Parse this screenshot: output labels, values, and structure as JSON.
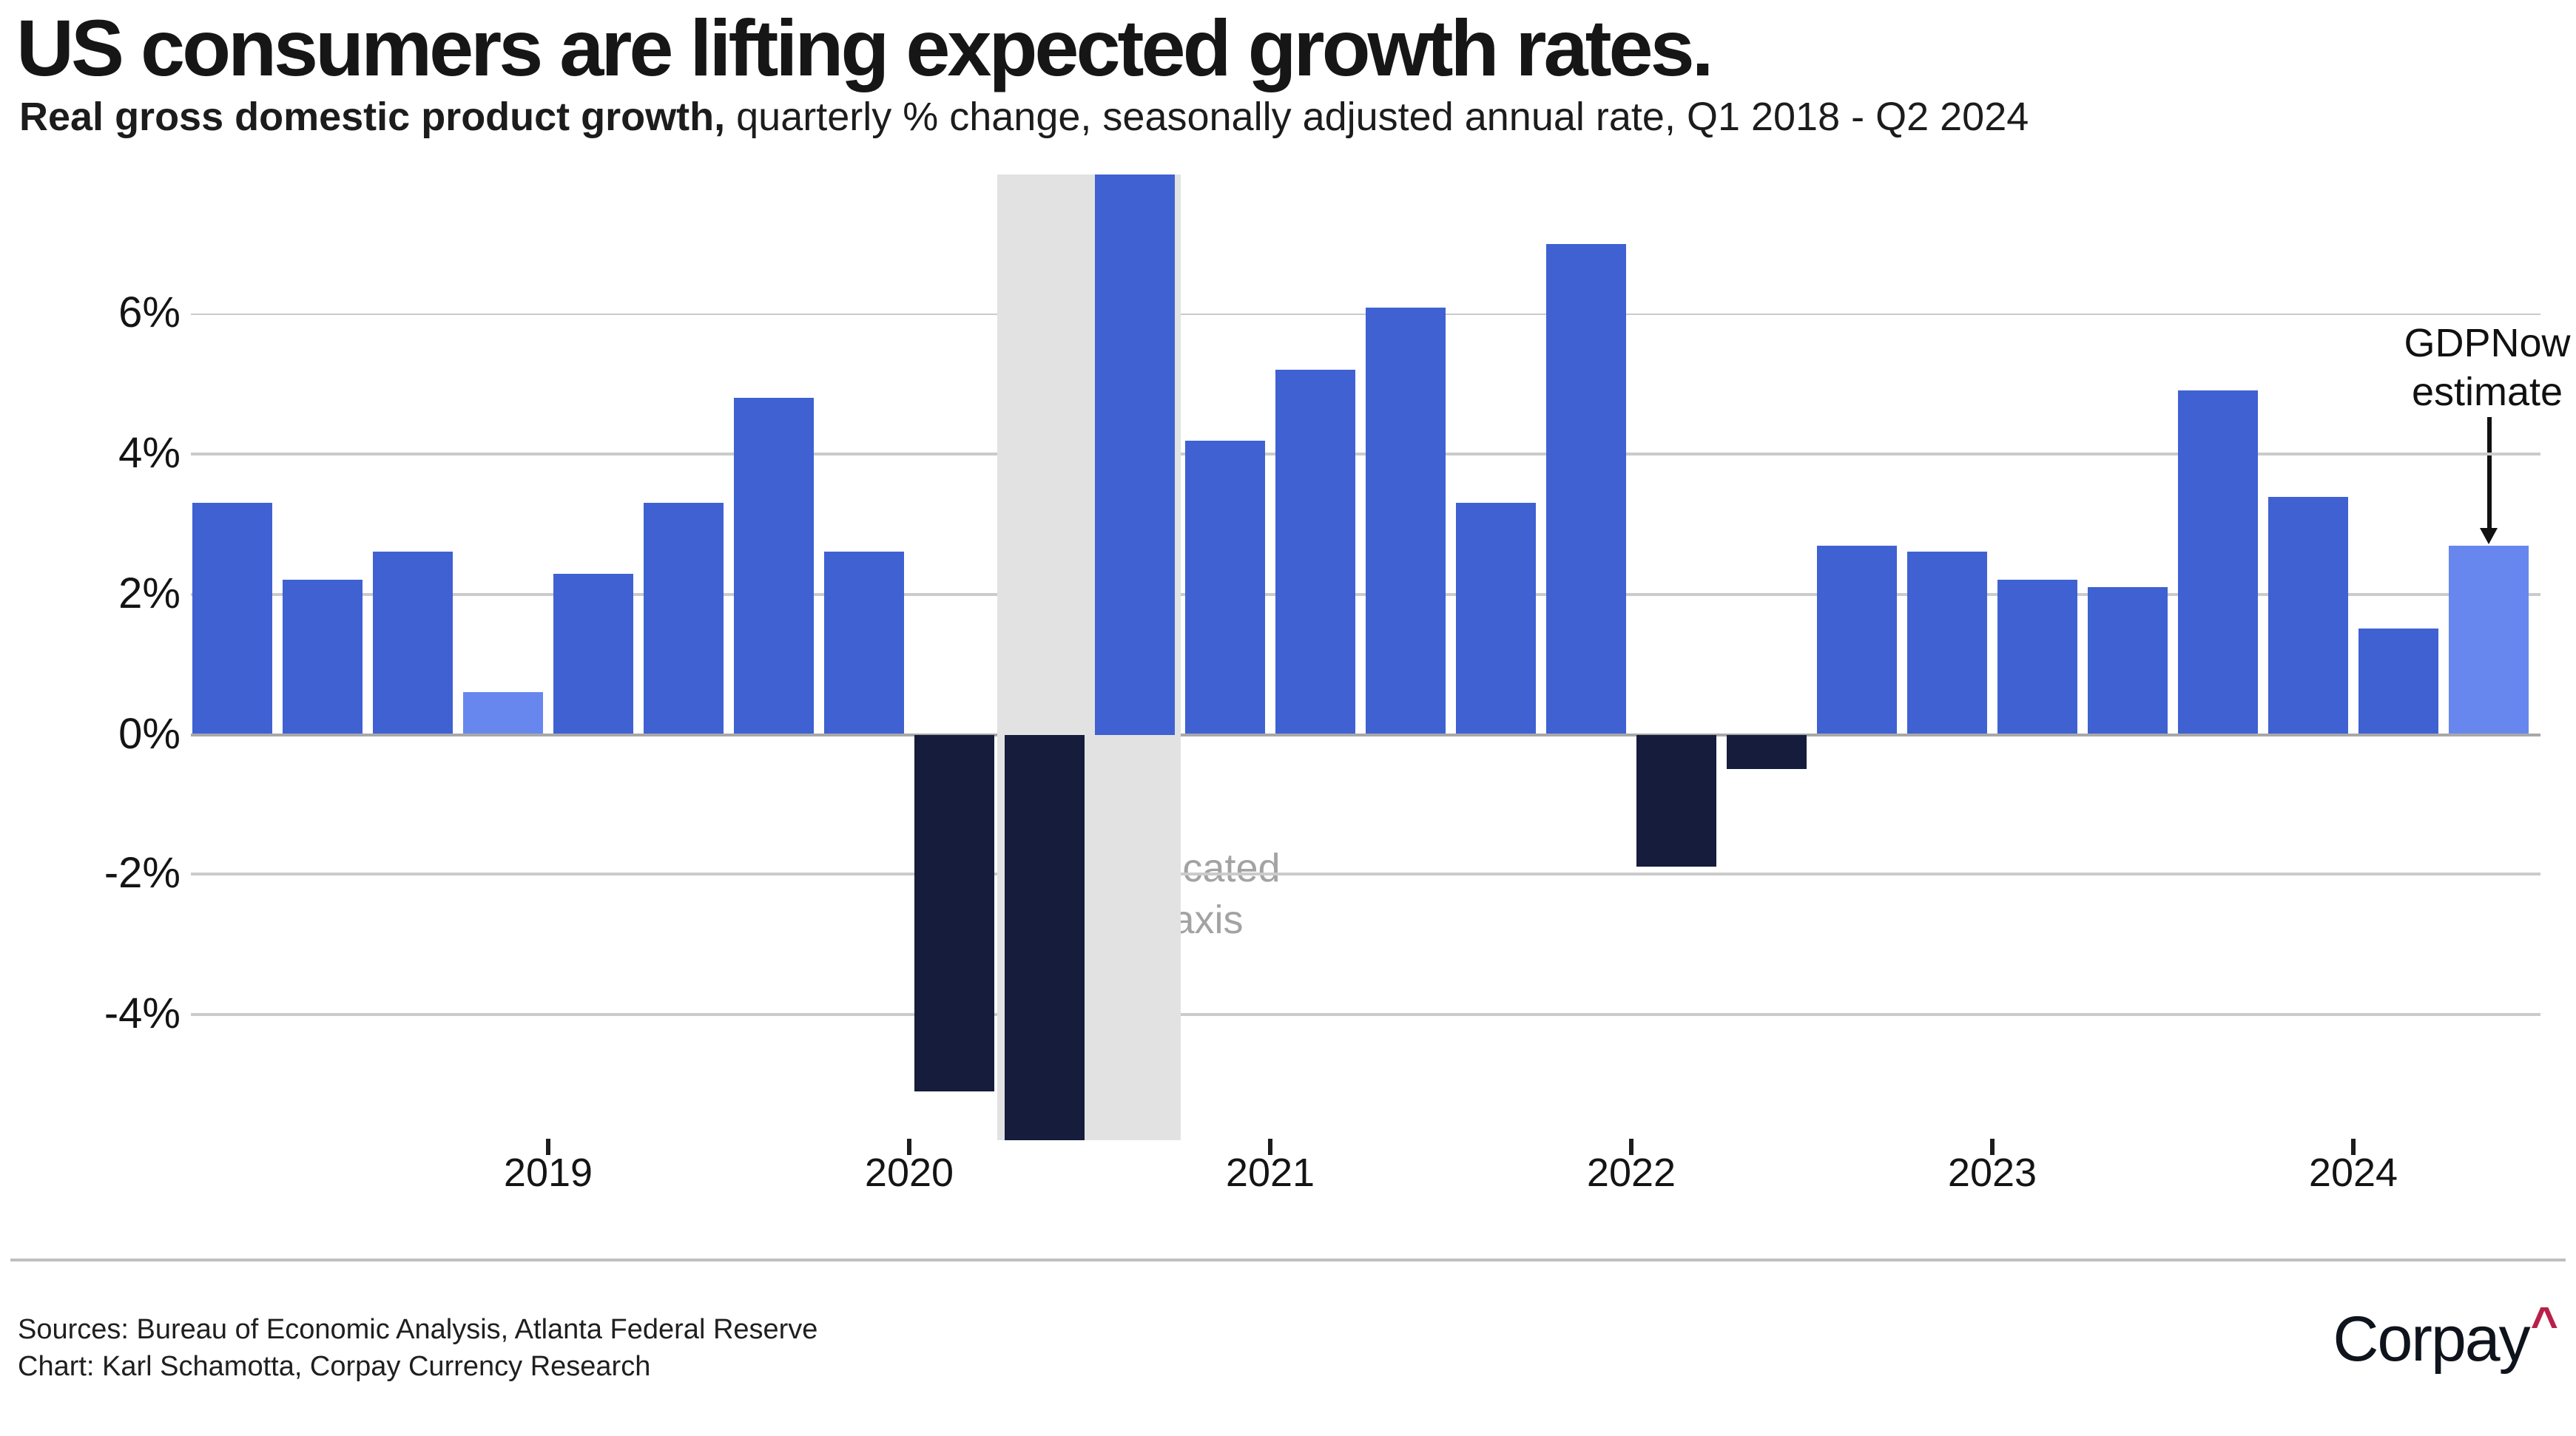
{
  "page": {
    "background": "#FFFFFF"
  },
  "header": {
    "title": "US consumers are lifting expected growth rates.",
    "subtitle_bold": "Real gross domestic product growth,",
    "subtitle_rest": " quarterly % change, seasonally adjusted annual rate, Q1 2018 - Q2 2024"
  },
  "chart_data": {
    "type": "bar",
    "title": "US consumers are lifting expected growth rates.",
    "subtitle": "Real gross domestic product growth, quarterly % change, seasonally adjusted annual rate, Q1 2018 - Q2 2024",
    "grid": "horizontal",
    "ylim_displayed": [
      -5.8,
      8.0
    ],
    "yticks": [
      {
        "label": "6%",
        "value": 6
      },
      {
        "label": "4%",
        "value": 4
      },
      {
        "label": "2%",
        "value": 2
      },
      {
        "label": "0%",
        "value": 0
      },
      {
        "label": "-2%",
        "value": -2
      },
      {
        "label": "-4%",
        "value": -4
      }
    ],
    "year_ticks": [
      {
        "label": "2019",
        "boundary_index": 4
      },
      {
        "label": "2020",
        "boundary_index": 8
      },
      {
        "label": "2021",
        "boundary_index": 12
      },
      {
        "label": "2022",
        "boundary_index": 16
      },
      {
        "label": "2023",
        "boundary_index": 20
      },
      {
        "label": "2024",
        "boundary_index": 24
      }
    ],
    "bars": [
      {
        "quarter": "Q1 2018",
        "value": 3.3,
        "style": "blue"
      },
      {
        "quarter": "Q2 2018",
        "value": 2.2,
        "style": "blue"
      },
      {
        "quarter": "Q3 2018",
        "value": 2.6,
        "style": "blue"
      },
      {
        "quarter": "Q4 2018",
        "value": 0.6,
        "style": "light"
      },
      {
        "quarter": "Q1 2019",
        "value": 2.3,
        "style": "blue"
      },
      {
        "quarter": "Q2 2019",
        "value": 3.3,
        "style": "blue"
      },
      {
        "quarter": "Q3 2019",
        "value": 4.8,
        "style": "blue"
      },
      {
        "quarter": "Q4 2019",
        "value": 2.6,
        "style": "blue"
      },
      {
        "quarter": "Q1 2020",
        "value": -5.1,
        "style": "navy"
      },
      {
        "quarter": "Q2 2020",
        "value": -28.0,
        "style": "navy",
        "truncated": true
      },
      {
        "quarter": "Q3 2020",
        "value": 34.8,
        "style": "blue",
        "truncated": true
      },
      {
        "quarter": "Q4 2020",
        "value": 4.2,
        "style": "blue"
      },
      {
        "quarter": "Q1 2021",
        "value": 5.2,
        "style": "blue"
      },
      {
        "quarter": "Q2 2021",
        "value": 6.1,
        "style": "blue"
      },
      {
        "quarter": "Q3 2021",
        "value": 3.3,
        "style": "blue"
      },
      {
        "quarter": "Q4 2021",
        "value": 7.0,
        "style": "blue"
      },
      {
        "quarter": "Q1 2022",
        "value": -1.9,
        "style": "navy"
      },
      {
        "quarter": "Q2 2022",
        "value": -0.5,
        "style": "navy"
      },
      {
        "quarter": "Q3 2022",
        "value": 2.7,
        "style": "blue"
      },
      {
        "quarter": "Q4 2022",
        "value": 2.6,
        "style": "blue"
      },
      {
        "quarter": "Q1 2023",
        "value": 2.2,
        "style": "blue"
      },
      {
        "quarter": "Q2 2023",
        "value": 2.1,
        "style": "blue"
      },
      {
        "quarter": "Q3 2023",
        "value": 4.9,
        "style": "blue"
      },
      {
        "quarter": "Q4 2023",
        "value": 3.4,
        "style": "blue"
      },
      {
        "quarter": "Q1 2024",
        "value": 1.5,
        "style": "blue"
      },
      {
        "quarter": "Q2 2024",
        "value": 2.7,
        "style": "light",
        "is_estimate": true
      }
    ],
    "truncated_bars": [
      "Q2 2020",
      "Q3 2020"
    ],
    "truncated_note_lines": [
      "Truncated",
      "y-axis"
    ],
    "annotation": {
      "lines": [
        "GDPNow",
        "estimate"
      ],
      "target_quarter": "Q2 2024"
    }
  },
  "colors": {
    "bar_blue": "#3F61D2",
    "bar_light_blue": "#6787EF",
    "bar_navy": "#151C3C",
    "truncation_band": "#E2E2E2",
    "gridline": "#CBCBCB",
    "zero_line": "#A8A8A8",
    "truncated_note_text": "#A3A3A3",
    "annotation_text": "#111111",
    "logo_caret": "#B92049",
    "text": "#161616"
  },
  "footer": {
    "sources_line": "Sources: Bureau of Economic Analysis, Atlanta Federal Reserve",
    "credit_line": "Chart: Karl Schamotta, Corpay Currency Research",
    "logo_text": "Corpay",
    "logo_caret_glyph": "^"
  }
}
